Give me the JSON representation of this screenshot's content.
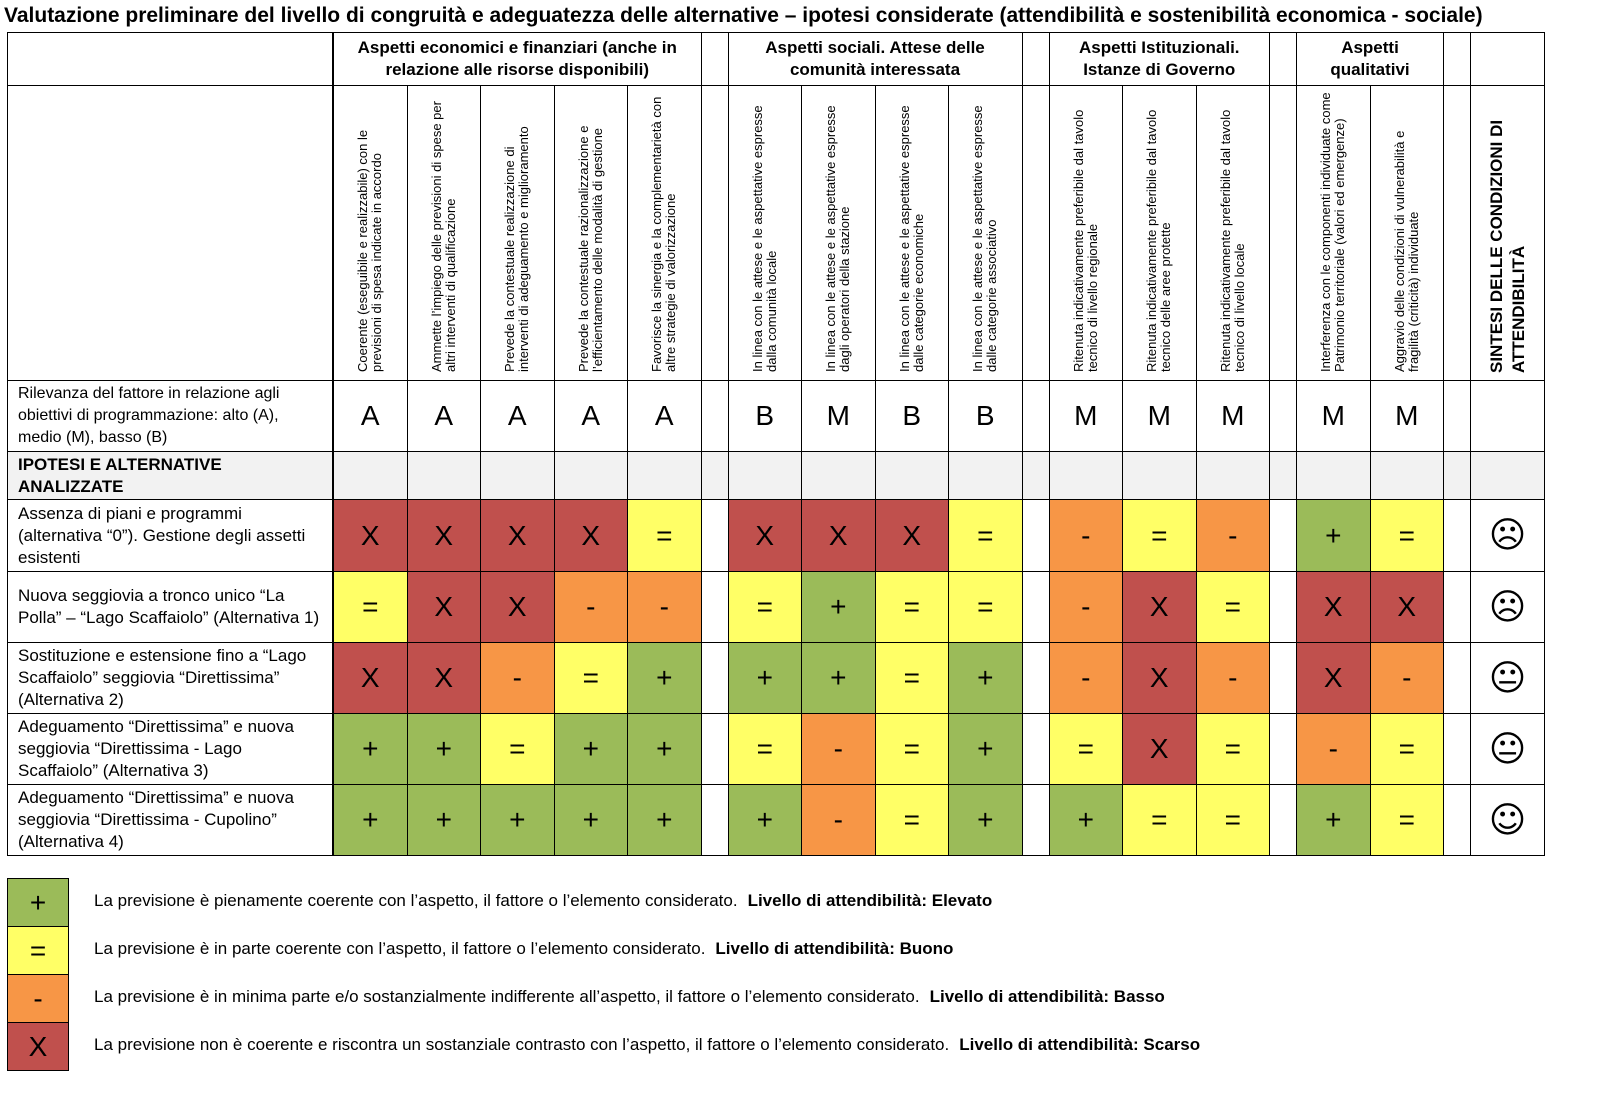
{
  "title": "Valutazione preliminare del livello di congruità e adeguatezza delle alternative – ipotesi considerate (attendibilità e sostenibilità economica - sociale)",
  "table": {
    "groups": [
      {
        "label": "Aspetti economici e finanziari (anche in relazione alle risorse disponibili)",
        "columns": [
          "Coerente (eseguibile e realizzabile) con le previsioni di spesa indicate in accordo",
          "Ammette l’impiego delle previsioni di spese per altri interventi di qualificazione",
          "Prevede la contestuale realizzazione di interventi di adeguamento e miglioramento",
          "Prevede la contestuale razionalizzazione e l’efficientamento delle modalità di gestione",
          "Favorisce la sinergia e la complementarietà con altre strategie di valorizzazione"
        ]
      },
      {
        "label": "Aspetti sociali. Attese delle comunità interessata",
        "columns": [
          "In linea con le attese e le aspettative espresse dalla comunità locale",
          "In linea con le attese e le aspettative espresse dagli operatori della stazione",
          "In linea con le attese e le aspettative espresse dalle categorie economiche",
          "In linea con le attese e le aspettative espresse dalle categorie associativo"
        ]
      },
      {
        "label": "Aspetti Istituzionali. Istanze di Governo",
        "columns": [
          "Ritenuta indicativamente preferibile dal tavolo tecnico di livello regionale",
          "Ritenuta indicativamente preferibile dal tavolo tecnico delle aree protette",
          "Ritenuta indicativamente  preferibile dal tavolo tecnico di livello locale"
        ]
      },
      {
        "label": "Aspetti qualitativi",
        "columns": [
          "Interferenza con le componenti individuate come Patrimonio territoriale (valori ed emergenze)",
          "Aggravio delle condizioni di vulnerabilità e fragilità (criticità) individuate"
        ]
      }
    ],
    "summary_header": "SINTESI DELLE CONDIZIONI DI ATTENDIBILITÀ",
    "relevance_label": "Rilevanza del fattore in relazione agli obiettivi di programmazione: alto (A), medio (M), basso (B)",
    "relevance": [
      [
        "A",
        "A",
        "A",
        "A",
        "A"
      ],
      [
        "B",
        "M",
        "B",
        "B"
      ],
      [
        "M",
        "M",
        "M"
      ],
      [
        "M",
        "M"
      ]
    ],
    "section_label": "IPOTESI E ALTERNATIVE ANALIZZATE",
    "rows": [
      {
        "label": "Assenza di piani e programmi (alternativa “0”). Gestione degli assetti esistenti",
        "cells": [
          [
            "X",
            "X",
            "X",
            "X",
            "="
          ],
          [
            "X",
            "X",
            "X",
            "="
          ],
          [
            "-",
            "=",
            "-"
          ],
          [
            "+",
            "="
          ]
        ],
        "summary": "☹"
      },
      {
        "label": "Nuova seggiovia a tronco unico “La Polla” – “Lago Scaffaiolo” (Alternativa 1)",
        "cells": [
          [
            "=",
            "X",
            "X",
            "-",
            "-"
          ],
          [
            "=",
            "+",
            "=",
            "="
          ],
          [
            "-",
            "X",
            "="
          ],
          [
            "X",
            "X"
          ]
        ],
        "summary": "☹"
      },
      {
        "label": "Sostituzione e estensione fino a “Lago Scaffaiolo” seggiovia “Direttissima” (Alternativa 2)",
        "cells": [
          [
            "X",
            "X",
            "-",
            "=",
            "+"
          ],
          [
            "+",
            "+",
            "=",
            "+"
          ],
          [
            "-",
            "X",
            "-"
          ],
          [
            "X",
            "-"
          ]
        ],
        "summary": "😐"
      },
      {
        "label": "Adeguamento “Direttissima” e nuova seggiovia “Direttissima - Lago Scaffaiolo” (Alternativa 3)",
        "cells": [
          [
            "+",
            "+",
            "=",
            "+",
            "+"
          ],
          [
            "=",
            "-",
            "=",
            "+"
          ],
          [
            "=",
            "X",
            "="
          ],
          [
            "-",
            "="
          ]
        ],
        "summary": "😐"
      },
      {
        "label": "Adeguamento “Direttissima” e nuova seggiovia “Direttissima - Cupolino” (Alternativa 4)",
        "cells": [
          [
            "+",
            "+",
            "+",
            "+",
            "+"
          ],
          [
            "+",
            "-",
            "=",
            "+"
          ],
          [
            "+",
            "=",
            "="
          ],
          [
            "+",
            "="
          ]
        ],
        "summary": "☺"
      }
    ]
  },
  "legend": [
    {
      "symbol": "+",
      "color": "#9bbb59",
      "text": "La previsione è pienamente coerente con l’aspetto, il fattore o l’elemento considerato.",
      "level": "Livello di attendibilità: Elevato"
    },
    {
      "symbol": "=",
      "color": "#ffff66",
      "text": "La previsione è in parte coerente con l’aspetto, il fattore o l’elemento considerato.",
      "level": "Livello di attendibilità: Buono"
    },
    {
      "symbol": "-",
      "color": "#f79646",
      "text": "La previsione è in minima parte e/o sostanzialmente indifferente all’aspetto, il fattore o l’elemento considerato.",
      "level": "Livello di attendibilità: Basso"
    },
    {
      "symbol": "X",
      "color": "#c0504d",
      "text": "La previsione non è coerente e riscontra un sostanziale contrasto con l’aspetto, il fattore o l’elemento considerato.",
      "level": "Livello di attendibilità: Scarso"
    }
  ]
}
